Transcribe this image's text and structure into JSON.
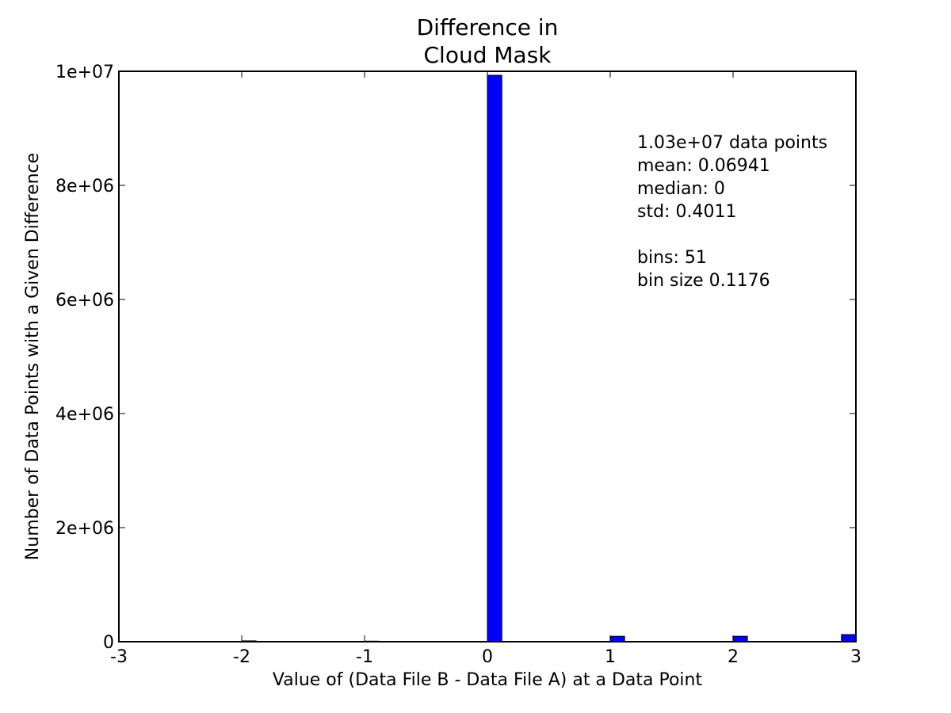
{
  "chart_data": {
    "type": "bar",
    "title": [
      "Difference in",
      "Cloud Mask"
    ],
    "xlabel": "Value of (Data File B - Data File A) at a Data Point",
    "ylabel": "Number of Data Points with a Given Difference",
    "xlim": [
      -3,
      3
    ],
    "ylim": [
      0,
      10000000
    ],
    "xticks": [
      -3,
      -2,
      -1,
      0,
      1,
      2,
      3
    ],
    "xtick_labels": [
      "-3",
      "-2",
      "-1",
      "0",
      "1",
      "2",
      "3"
    ],
    "yticks": [
      0,
      2000000,
      4000000,
      6000000,
      8000000,
      10000000
    ],
    "ytick_labels": [
      "0",
      "2e+06",
      "4e+06",
      "6e+06",
      "8e+06",
      "1e+07"
    ],
    "bin_width": 0.1176,
    "bars": [
      {
        "x_start": -2.0,
        "value": 15000
      },
      {
        "x_start": -1.0,
        "value": 10000
      },
      {
        "x_start": 0.0,
        "value": 9930000
      },
      {
        "x_start": 0.9996,
        "value": 95000
      },
      {
        "x_start": 1.9992,
        "value": 95000
      },
      {
        "x_start": 2.8824,
        "value": 125000
      }
    ],
    "bar_color": "#0000ff",
    "grid": false,
    "annotation_lines": [
      "1.03e+07 data points",
      "mean: 0.06941",
      "median: 0",
      "std: 0.4011",
      "",
      "bins: 51",
      "bin size 0.1176"
    ]
  }
}
